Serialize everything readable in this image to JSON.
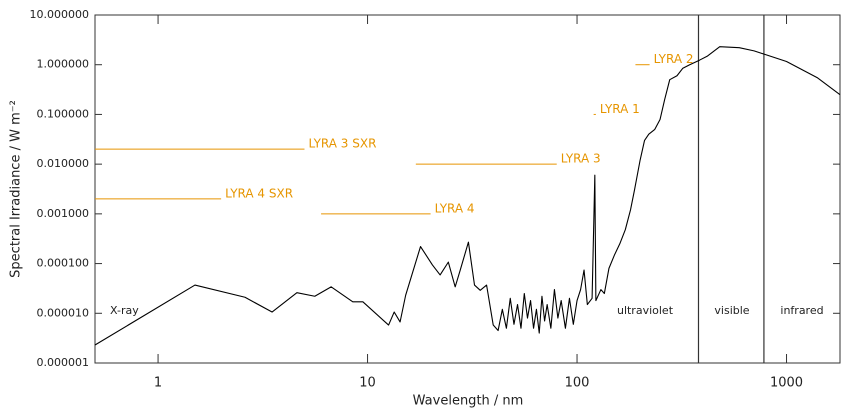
{
  "chart_data": {
    "type": "line",
    "x_label": "Wavelength / nm",
    "y_label": "Spectral Irradiance / W m⁻²",
    "x_log": true,
    "y_log": true,
    "xlim": [
      0.5,
      1800
    ],
    "ylim": [
      1e-06,
      10
    ],
    "xticks": [
      1,
      10,
      100,
      1000
    ],
    "yticks": [
      {
        "value": 10,
        "label": "10.000000"
      },
      {
        "value": 1,
        "label": "1.000000"
      },
      {
        "value": 0.1,
        "label": "0.100000"
      },
      {
        "value": 0.01,
        "label": "0.010000"
      },
      {
        "value": 0.001,
        "label": "0.001000"
      },
      {
        "value": 0.0001,
        "label": "0.000100"
      },
      {
        "value": 1e-05,
        "label": "0.000010"
      },
      {
        "value": 1e-06,
        "label": "0.000001"
      }
    ],
    "series": [
      {
        "color": "#000000",
        "x": [
          0.5,
          1.5,
          2.6,
          3.5,
          4.6,
          5.6,
          6.7,
          8.5,
          9.5,
          12.6,
          13.4,
          14.3,
          15.2,
          17.9,
          20.4,
          22.2,
          24.3,
          26.2,
          27.7,
          30.3,
          32.4,
          34.5,
          37,
          39.8,
          42,
          44,
          46,
          48,
          50,
          52,
          54,
          56,
          58,
          60,
          62,
          64,
          66,
          68,
          70,
          72,
          75,
          78,
          81,
          84,
          88,
          92,
          96,
          100,
          104,
          108,
          112,
          118,
          121.6,
          123,
          130,
          135,
          142,
          151,
          160,
          170,
          180,
          188,
          200,
          210,
          220,
          235,
          249,
          262,
          277,
          300,
          320,
          345,
          385,
          420,
          480,
          595,
          700,
          1000,
          1400,
          1800
        ],
        "values": [
          2.3e-06,
          3.7e-05,
          2.1e-05,
          1.06e-05,
          2.6e-05,
          2.2e-05,
          3.4e-05,
          1.7e-05,
          1.7e-05,
          5.8e-06,
          1.06e-05,
          6.7e-06,
          2.3e-05,
          0.00022,
          9.4e-05,
          5.9e-05,
          0.000107,
          3.4e-05,
          7.4e-05,
          0.00027,
          3.7e-05,
          2.9e-05,
          3.7e-05,
          5.8e-06,
          4.5e-06,
          1.2e-05,
          5e-06,
          2e-05,
          6e-06,
          1.5e-05,
          5e-06,
          2.5e-05,
          8e-06,
          1.8e-05,
          5e-06,
          1.2e-05,
          4e-06,
          2.2e-05,
          7e-06,
          1.5e-05,
          5e-06,
          3e-05,
          8e-06,
          1.8e-05,
          5e-06,
          2e-05,
          6e-06,
          1.8e-05,
          3e-05,
          7.4e-05,
          1.5e-05,
          2e-05,
          0.006,
          1.8e-05,
          3e-05,
          2.5e-05,
          8e-05,
          0.00015,
          0.00025,
          0.00048,
          0.0012,
          0.003,
          0.012,
          0.03,
          0.04,
          0.05,
          0.079,
          0.2,
          0.5,
          0.6,
          0.85,
          1.0,
          1.24,
          1.5,
          2.3,
          2.2,
          1.9,
          1.16,
          0.55,
          0.25
        ]
      }
    ],
    "bands": {
      "color": "#e69500",
      "items": [
        {
          "name": "LYRA 3 SXR",
          "xrange": [
            0.5,
            5
          ],
          "level": 0.02
        },
        {
          "name": "LYRA 4 SXR",
          "xrange": [
            0.5,
            2
          ],
          "level": 0.002
        },
        {
          "name": "LYRA 4",
          "xrange": [
            6,
            20
          ],
          "level": 0.001
        },
        {
          "name": "LYRA 3",
          "xrange": [
            17,
            80
          ],
          "level": 0.01
        },
        {
          "name": "LYRA 1",
          "xrange": [
            120,
            123
          ],
          "level": 0.1
        },
        {
          "name": "LYRA 2",
          "xrange": [
            190,
            222
          ],
          "level": 1
        }
      ]
    },
    "region_boundaries": [
      380,
      780
    ],
    "regions": [
      "X-ray",
      "ultraviolet",
      "visible",
      "infrared"
    ]
  }
}
